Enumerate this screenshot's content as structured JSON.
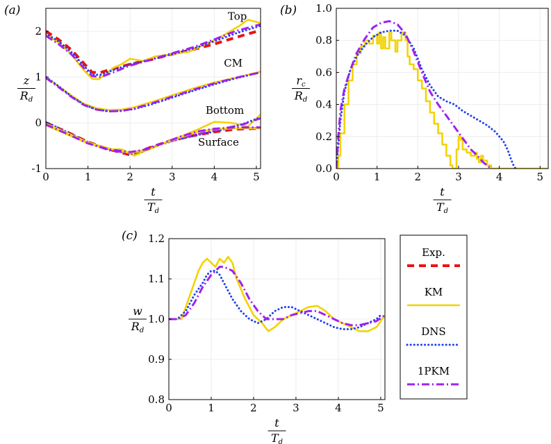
{
  "colors": {
    "Exp": "#ee1111",
    "KM": "#f2d300",
    "DNS": "#1f3ff0",
    "1PKM": "#a020f0",
    "grid": "#ececec",
    "frame": "#000000"
  },
  "legend": {
    "entries": [
      {
        "key": "Exp",
        "label": "Exp.",
        "style": "dash"
      },
      {
        "key": "KM",
        "label": "KM",
        "style": "solid"
      },
      {
        "key": "DNS",
        "label": "DNS",
        "style": "dot"
      },
      {
        "key": "1PKM",
        "label": "1PKM",
        "style": "dashdot"
      }
    ]
  },
  "chart_data": [
    {
      "panel": "(a)",
      "type": "line",
      "xlabel_num": "t",
      "xlabel_den": "T",
      "xlabel_den_sub": "d",
      "ylabel_num": "z",
      "ylabel_den": "R",
      "ylabel_den_sub": "d",
      "xlim": [
        0,
        5.1
      ],
      "ylim": [
        -1,
        2.5
      ],
      "xticks": [
        0,
        1,
        2,
        3,
        4,
        5
      ],
      "yticks": [
        -1,
        0,
        1,
        2
      ],
      "grid": true,
      "annotations": [
        {
          "text": "Top",
          "x": 4.55,
          "y": 2.25
        },
        {
          "text": "CM",
          "x": 4.45,
          "y": 1.23
        },
        {
          "text": "Bottom",
          "x": 4.25,
          "y": 0.2
        },
        {
          "text": "Surface",
          "x": 4.1,
          "y": -0.5
        }
      ],
      "series": [
        {
          "key": "Exp",
          "group": "Top",
          "x": [
            0,
            0.3,
            0.6,
            0.9,
            1.1,
            1.3,
            1.6,
            2.0,
            2.5,
            3.0,
            3.5,
            4.0,
            4.5,
            5.1
          ],
          "y": [
            2.0,
            1.82,
            1.6,
            1.3,
            1.1,
            1.1,
            1.18,
            1.28,
            1.38,
            1.5,
            1.6,
            1.72,
            1.86,
            2.02
          ]
        },
        {
          "key": "KM",
          "group": "Top",
          "x": [
            0,
            0.3,
            0.6,
            0.9,
            1.1,
            1.25,
            1.4,
            1.6,
            1.8,
            2.0,
            2.3,
            2.6,
            3.0,
            3.4,
            3.8,
            4.2,
            4.6,
            4.8,
            5.1
          ],
          "y": [
            1.93,
            1.75,
            1.5,
            1.15,
            0.96,
            0.95,
            1.05,
            1.2,
            1.28,
            1.4,
            1.35,
            1.45,
            1.5,
            1.55,
            1.72,
            1.9,
            2.12,
            2.25,
            2.18
          ]
        },
        {
          "key": "DNS",
          "group": "Top",
          "x": [
            0,
            0.3,
            0.6,
            0.9,
            1.1,
            1.3,
            1.6,
            2.0,
            2.5,
            3.0,
            3.5,
            4.0,
            4.5,
            5.1
          ],
          "y": [
            1.95,
            1.78,
            1.55,
            1.25,
            1.05,
            1.05,
            1.15,
            1.28,
            1.38,
            1.5,
            1.62,
            1.78,
            1.95,
            2.12
          ]
        },
        {
          "key": "1PKM",
          "group": "Top",
          "x": [
            0,
            0.3,
            0.6,
            0.9,
            1.1,
            1.3,
            1.6,
            2.0,
            2.5,
            3.0,
            3.5,
            4.0,
            4.5,
            5.1
          ],
          "y": [
            1.9,
            1.72,
            1.5,
            1.2,
            1.02,
            1.0,
            1.1,
            1.25,
            1.38,
            1.52,
            1.65,
            1.82,
            2.0,
            2.15
          ]
        },
        {
          "key": "KM",
          "group": "CM",
          "x": [
            0,
            0.3,
            0.6,
            0.9,
            1.2,
            1.5,
            1.8,
            2.1,
            2.5,
            3.0,
            3.5,
            4.0,
            4.5,
            5.1
          ],
          "y": [
            1.0,
            0.8,
            0.6,
            0.42,
            0.32,
            0.28,
            0.29,
            0.34,
            0.45,
            0.6,
            0.75,
            0.88,
            0.98,
            1.12
          ]
        },
        {
          "key": "DNS",
          "group": "CM",
          "x": [
            0,
            0.3,
            0.6,
            0.9,
            1.2,
            1.5,
            1.8,
            2.1,
            2.5,
            3.0,
            3.5,
            4.0,
            4.5,
            5.1
          ],
          "y": [
            1.0,
            0.8,
            0.58,
            0.4,
            0.29,
            0.25,
            0.26,
            0.3,
            0.4,
            0.55,
            0.7,
            0.84,
            0.97,
            1.1
          ]
        },
        {
          "key": "1PKM",
          "group": "CM",
          "x": [
            0,
            0.3,
            0.6,
            0.9,
            1.2,
            1.5,
            1.8,
            2.1,
            2.5,
            3.0,
            3.5,
            4.0,
            4.5,
            5.1
          ],
          "y": [
            0.98,
            0.78,
            0.57,
            0.39,
            0.29,
            0.25,
            0.26,
            0.31,
            0.42,
            0.57,
            0.72,
            0.86,
            0.98,
            1.1
          ]
        },
        {
          "key": "Exp",
          "group": "Bottom",
          "x": [
            0,
            0.5,
            1.0,
            1.5,
            2.0,
            2.2,
            2.6,
            3.0,
            3.5,
            4.0,
            4.5,
            5.1
          ],
          "y": [
            0.0,
            -0.2,
            -0.42,
            -0.58,
            -0.7,
            -0.63,
            -0.5,
            -0.38,
            -0.28,
            -0.2,
            -0.14,
            -0.12
          ]
        },
        {
          "key": "KM",
          "group": "Bottom",
          "x": [
            0,
            0.5,
            1.0,
            1.5,
            1.8,
            2.1,
            2.4,
            2.8,
            3.2,
            3.6,
            4.0,
            4.4,
            4.8,
            5.1
          ],
          "y": [
            -0.05,
            -0.25,
            -0.45,
            -0.58,
            -0.58,
            -0.72,
            -0.6,
            -0.45,
            -0.3,
            -0.15,
            0.02,
            0.0,
            -0.08,
            0.18
          ]
        },
        {
          "key": "DNS",
          "group": "Bottom",
          "x": [
            0,
            0.5,
            1.0,
            1.5,
            2.0,
            2.3,
            2.7,
            3.2,
            3.7,
            4.2,
            4.7,
            5.1
          ],
          "y": [
            0.02,
            -0.2,
            -0.42,
            -0.58,
            -0.68,
            -0.62,
            -0.48,
            -0.35,
            -0.25,
            -0.15,
            -0.02,
            0.12
          ]
        },
        {
          "key": "1PKM",
          "group": "Bottom",
          "x": [
            0,
            0.5,
            1.0,
            1.5,
            2.0,
            2.3,
            2.7,
            3.2,
            3.7,
            4.2,
            4.7,
            5.1
          ],
          "y": [
            -0.02,
            -0.22,
            -0.44,
            -0.6,
            -0.66,
            -0.6,
            -0.47,
            -0.34,
            -0.23,
            -0.13,
            -0.03,
            0.1
          ]
        },
        {
          "key": "KM",
          "group": "Surface",
          "x": [
            0,
            0.5,
            1.0,
            1.5,
            2.0,
            2.4,
            2.8,
            3.2,
            3.6,
            4.0,
            4.5,
            5.1
          ],
          "y": [
            -0.02,
            -0.22,
            -0.43,
            -0.56,
            -0.66,
            -0.6,
            -0.45,
            -0.32,
            -0.2,
            -0.14,
            -0.12,
            -0.12
          ]
        },
        {
          "key": "1PKM",
          "group": "Surface",
          "x": [
            0,
            0.5,
            1.0,
            1.5,
            2.0,
            2.4,
            2.8,
            3.2,
            3.6,
            4.0,
            4.5,
            5.1
          ],
          "y": [
            -0.04,
            -0.24,
            -0.45,
            -0.58,
            -0.64,
            -0.58,
            -0.44,
            -0.3,
            -0.19,
            -0.13,
            -0.1,
            -0.1
          ]
        }
      ]
    },
    {
      "panel": "(b)",
      "type": "line",
      "xlabel_num": "t",
      "xlabel_den": "T",
      "xlabel_den_sub": "d",
      "ylabel_num": "r",
      "ylabel_num_sub": "c",
      "ylabel_den": "R",
      "ylabel_den_sub": "d",
      "xlim": [
        0,
        5.2
      ],
      "ylim": [
        0,
        1.0
      ],
      "xticks": [
        0,
        1,
        2,
        3,
        4,
        5
      ],
      "yticks": [
        0.0,
        0.2,
        0.4,
        0.6,
        0.8,
        1.0
      ],
      "grid": true,
      "series": [
        {
          "key": "KM",
          "x": [
            0.0,
            0.05,
            0.1,
            0.2,
            0.3,
            0.4,
            0.5,
            0.6,
            0.7,
            0.8,
            0.9,
            1.0,
            1.05,
            1.1,
            1.15,
            1.2,
            1.3,
            1.35,
            1.45,
            1.5,
            1.6,
            1.7,
            1.75,
            1.8,
            1.9,
            2.0,
            2.1,
            2.2,
            2.3,
            2.4,
            2.5,
            2.6,
            2.7,
            2.8,
            2.85,
            2.9,
            2.95,
            3.0,
            3.05,
            3.1,
            3.2,
            3.3,
            3.4,
            3.45,
            3.5,
            3.55,
            3.6,
            3.7,
            3.8,
            4.0,
            5.2
          ],
          "y": [
            0.0,
            0.08,
            0.22,
            0.4,
            0.55,
            0.65,
            0.72,
            0.76,
            0.8,
            0.78,
            0.83,
            0.78,
            0.85,
            0.75,
            0.82,
            0.75,
            0.85,
            0.8,
            0.73,
            0.8,
            0.85,
            0.8,
            0.7,
            0.65,
            0.62,
            0.55,
            0.5,
            0.42,
            0.35,
            0.28,
            0.22,
            0.15,
            0.08,
            0.02,
            0.0,
            0.0,
            0.12,
            0.2,
            0.18,
            0.12,
            0.1,
            0.08,
            0.1,
            0.06,
            0.04,
            0.08,
            0.05,
            0.02,
            0.0,
            0.0,
            0.0
          ]
        },
        {
          "key": "DNS",
          "x": [
            0.0,
            0.05,
            0.1,
            0.2,
            0.35,
            0.5,
            0.7,
            0.9,
            1.1,
            1.3,
            1.5,
            1.7,
            1.9,
            2.1,
            2.3,
            2.5,
            2.7,
            2.9,
            3.1,
            3.3,
            3.5,
            3.7,
            3.9,
            4.1,
            4.2,
            4.3,
            4.35,
            4.4
          ],
          "y": [
            0.0,
            0.15,
            0.3,
            0.48,
            0.62,
            0.7,
            0.77,
            0.82,
            0.85,
            0.86,
            0.86,
            0.83,
            0.75,
            0.62,
            0.52,
            0.45,
            0.42,
            0.4,
            0.36,
            0.33,
            0.3,
            0.27,
            0.23,
            0.17,
            0.12,
            0.05,
            0.02,
            0.0
          ]
        },
        {
          "key": "1PKM",
          "x": [
            0.0,
            0.05,
            0.1,
            0.2,
            0.35,
            0.5,
            0.7,
            0.9,
            1.1,
            1.3,
            1.5,
            1.7,
            1.9,
            2.1,
            2.3,
            2.5,
            2.7,
            2.9,
            3.1,
            3.3,
            3.5,
            3.6,
            3.7,
            3.8
          ],
          "y": [
            0.0,
            0.2,
            0.36,
            0.5,
            0.62,
            0.72,
            0.81,
            0.88,
            0.91,
            0.92,
            0.9,
            0.84,
            0.73,
            0.6,
            0.48,
            0.4,
            0.33,
            0.26,
            0.19,
            0.12,
            0.07,
            0.04,
            0.02,
            0.0
          ]
        }
      ]
    },
    {
      "panel": "(c)",
      "type": "line",
      "xlabel_num": "t",
      "xlabel_den": "T",
      "xlabel_den_sub": "d",
      "ylabel_num": "w",
      "ylabel_den": "R",
      "ylabel_den_sub": "d",
      "xlim": [
        0,
        5.1
      ],
      "ylim": [
        0.8,
        1.2
      ],
      "xticks": [
        0,
        1,
        2,
        3,
        4,
        5
      ],
      "yticks": [
        0.8,
        0.9,
        1.0,
        1.1,
        1.2
      ],
      "grid": true,
      "series": [
        {
          "key": "KM",
          "x": [
            0.0,
            0.2,
            0.3,
            0.4,
            0.5,
            0.6,
            0.7,
            0.8,
            0.9,
            1.0,
            1.1,
            1.2,
            1.3,
            1.4,
            1.5,
            1.6,
            1.8,
            2.0,
            2.2,
            2.35,
            2.5,
            2.7,
            2.9,
            3.1,
            3.3,
            3.5,
            3.7,
            3.9,
            4.1,
            4.3,
            4.5,
            4.7,
            4.9,
            5.1
          ],
          "y": [
            1.0,
            1.0,
            1.0,
            1.03,
            1.06,
            1.09,
            1.12,
            1.14,
            1.15,
            1.14,
            1.13,
            1.15,
            1.14,
            1.155,
            1.14,
            1.1,
            1.05,
            1.01,
            0.99,
            0.97,
            0.98,
            1.0,
            1.01,
            1.02,
            1.03,
            1.033,
            1.02,
            1.0,
            0.99,
            0.98,
            0.97,
            0.97,
            0.98,
            1.01
          ]
        },
        {
          "key": "DNS",
          "x": [
            0.0,
            0.2,
            0.4,
            0.6,
            0.8,
            0.9,
            1.0,
            1.1,
            1.2,
            1.3,
            1.5,
            1.7,
            1.9,
            2.1,
            2.3,
            2.5,
            2.7,
            2.9,
            3.1,
            3.3,
            3.5,
            3.7,
            3.9,
            4.1,
            4.3,
            4.5,
            4.7,
            4.9,
            5.0
          ],
          "y": [
            1.0,
            1.0,
            1.02,
            1.06,
            1.09,
            1.11,
            1.12,
            1.12,
            1.11,
            1.09,
            1.05,
            1.02,
            1.0,
            0.99,
            1.0,
            1.02,
            1.03,
            1.03,
            1.02,
            1.01,
            1.0,
            0.99,
            0.98,
            0.975,
            0.975,
            0.98,
            0.99,
            1.0,
            1.01
          ]
        },
        {
          "key": "1PKM",
          "x": [
            0.0,
            0.2,
            0.4,
            0.6,
            0.8,
            1.0,
            1.2,
            1.3,
            1.5,
            1.7,
            1.9,
            2.1,
            2.3,
            2.5,
            2.7,
            2.9,
            3.1,
            3.3,
            3.5,
            3.7,
            3.9,
            4.1,
            4.3,
            4.5,
            4.7,
            4.9,
            5.1
          ],
          "y": [
            1.0,
            1.0,
            1.01,
            1.04,
            1.08,
            1.11,
            1.13,
            1.13,
            1.12,
            1.09,
            1.05,
            1.02,
            1.0,
            1.0,
            1.0,
            1.01,
            1.015,
            1.02,
            1.02,
            1.01,
            1.0,
            0.99,
            0.985,
            0.985,
            0.99,
            0.995,
            1.01
          ]
        }
      ]
    }
  ]
}
